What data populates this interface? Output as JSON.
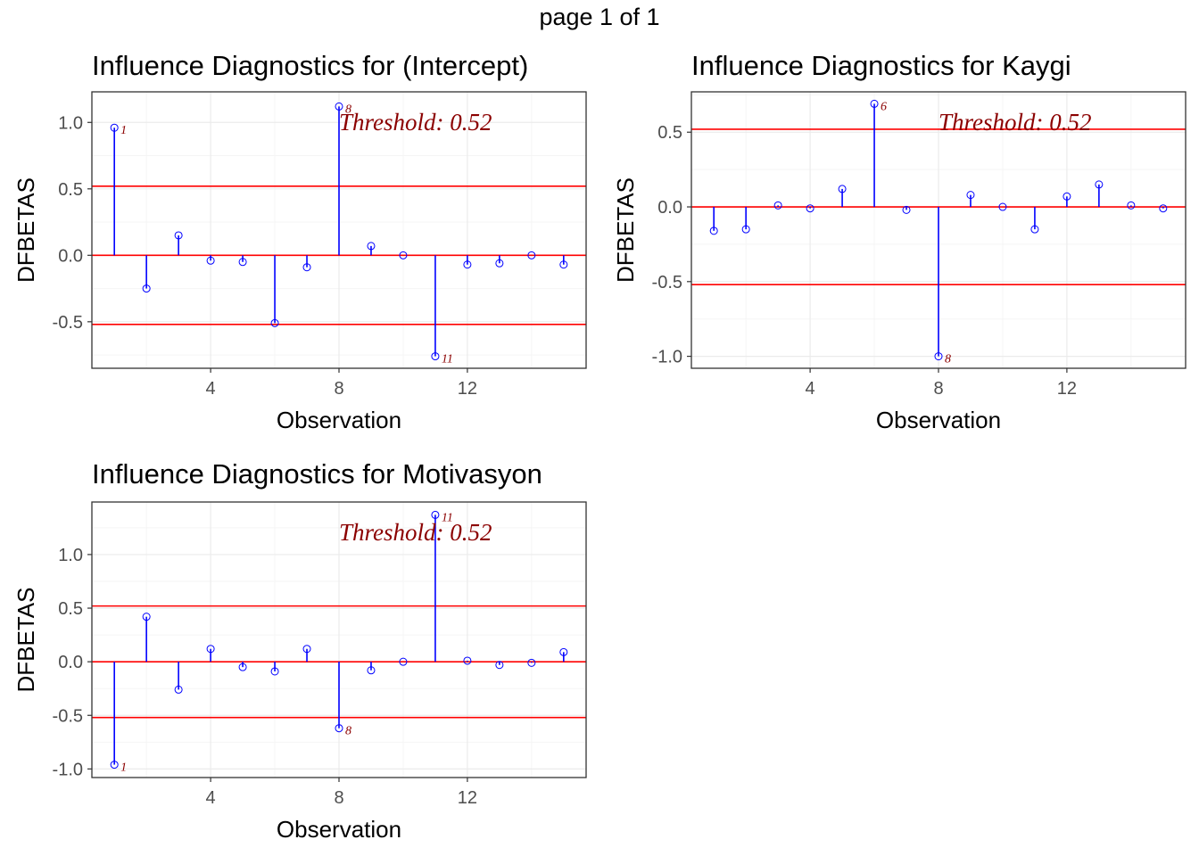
{
  "page_title": "page 1 of 1",
  "chart_data": [
    {
      "type": "scatter",
      "title": "Influence Diagnostics for (Intercept)",
      "xlabel": "Observation",
      "ylabel": "DFBETAS",
      "x": [
        1,
        2,
        3,
        4,
        5,
        6,
        7,
        8,
        9,
        10,
        11,
        12,
        13,
        14,
        15
      ],
      "values": [
        0.96,
        -0.25,
        0.15,
        -0.04,
        -0.05,
        -0.51,
        -0.09,
        1.12,
        0.07,
        0.0,
        -0.76,
        -0.07,
        -0.06,
        0.0,
        -0.07
      ],
      "threshold": 0.52,
      "threshold_label": "Threshold: 0.52",
      "flagged": [
        {
          "x": 1,
          "label": "1"
        },
        {
          "x": 8,
          "label": "8"
        },
        {
          "x": 11,
          "label": "11"
        }
      ],
      "xticks": [
        4,
        8,
        12
      ],
      "xtick_labels": [
        "4",
        "8",
        "12"
      ],
      "yticks": [
        -0.5,
        0.0,
        0.5,
        1.0
      ],
      "ytick_labels": [
        "-0.5",
        "0.0",
        "0.5",
        "1.0"
      ],
      "xlim": [
        0.3,
        15.7
      ],
      "ylim": [
        -0.85,
        1.23
      ],
      "grid": true
    },
    {
      "type": "scatter",
      "title": "Influence Diagnostics for Kaygi",
      "xlabel": "Observation",
      "ylabel": "DFBETAS",
      "x": [
        1,
        2,
        3,
        4,
        5,
        6,
        7,
        8,
        9,
        10,
        11,
        12,
        13,
        14,
        15
      ],
      "values": [
        -0.16,
        -0.15,
        0.01,
        -0.01,
        0.12,
        0.69,
        -0.02,
        -1.0,
        0.08,
        0.0,
        -0.15,
        0.07,
        0.15,
        0.01,
        -0.01
      ],
      "threshold": 0.52,
      "threshold_label": "Threshold: 0.52",
      "flagged": [
        {
          "x": 6,
          "label": "6"
        },
        {
          "x": 8,
          "label": "8"
        }
      ],
      "xticks": [
        4,
        8,
        12
      ],
      "xtick_labels": [
        "4",
        "8",
        "12"
      ],
      "yticks": [
        -1.0,
        -0.5,
        0.0,
        0.5
      ],
      "ytick_labels": [
        "-1.0",
        "-0.5",
        "0.0",
        "0.5"
      ],
      "xlim": [
        0.3,
        15.7
      ],
      "ylim": [
        -1.08,
        0.77
      ],
      "grid": true
    },
    {
      "type": "scatter",
      "title": "Influence Diagnostics for Motivasyon",
      "xlabel": "Observation",
      "ylabel": "DFBETAS",
      "x": [
        1,
        2,
        3,
        4,
        5,
        6,
        7,
        8,
        9,
        10,
        11,
        12,
        13,
        14,
        15
      ],
      "values": [
        -0.96,
        0.42,
        -0.26,
        0.12,
        -0.05,
        -0.09,
        0.12,
        -0.62,
        -0.08,
        0.0,
        1.37,
        0.01,
        -0.03,
        -0.01,
        0.09
      ],
      "threshold": 0.52,
      "threshold_label": "Threshold: 0.52",
      "flagged": [
        {
          "x": 1,
          "label": "1"
        },
        {
          "x": 8,
          "label": "8"
        },
        {
          "x": 11,
          "label": "11"
        }
      ],
      "xticks": [
        4,
        8,
        12
      ],
      "xtick_labels": [
        "4",
        "8",
        "12"
      ],
      "yticks": [
        -1.0,
        -0.5,
        0.0,
        0.5,
        1.0
      ],
      "ytick_labels": [
        "-1.0",
        "-0.5",
        "0.0",
        "0.5",
        "1.0"
      ],
      "xlim": [
        0.3,
        15.7
      ],
      "ylim": [
        -1.08,
        1.49
      ],
      "grid": true
    }
  ],
  "colors": {
    "stem": "#0000ff",
    "point": "#0000ff",
    "threshold_line": "#ff0000",
    "threshold_text": "#8b0000",
    "grid_major": "#ebebeb",
    "grid_minor": "#f5f5f5",
    "panel_border": "#333333"
  }
}
